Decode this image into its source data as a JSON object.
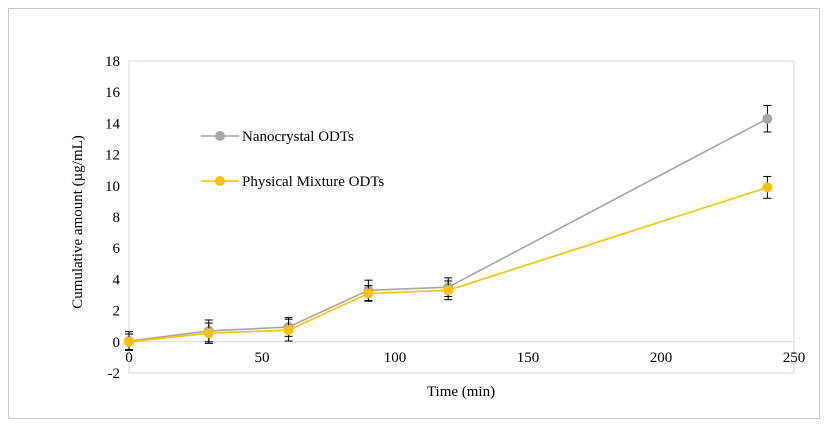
{
  "chart_data": {
    "type": "line",
    "xlabel": "Time (min)",
    "ylabel": "Cumulative amount (µg/mL)",
    "xlim": [
      0,
      250
    ],
    "ylim": [
      -2,
      18
    ],
    "xticks": [
      0,
      50,
      100,
      150,
      200,
      250
    ],
    "yticks": [
      -2,
      0,
      2,
      4,
      6,
      8,
      10,
      12,
      14,
      16,
      18
    ],
    "grid": false,
    "legend": "upper-left inside plot",
    "x": [
      0,
      30,
      60,
      90,
      120,
      240
    ],
    "series": [
      {
        "name": "Nanocrystal ODTs",
        "color": "#a6a6a6",
        "values": [
          0.05,
          0.7,
          0.95,
          3.3,
          3.5,
          14.3
        ],
        "errors": [
          0.6,
          0.7,
          0.6,
          0.65,
          0.6,
          0.85
        ]
      },
      {
        "name": "Physical Mixture ODTs",
        "color": "#ffc000",
        "values": [
          0.0,
          0.55,
          0.75,
          3.1,
          3.3,
          9.9
        ],
        "errors": [
          0.5,
          0.65,
          0.7,
          0.5,
          0.6,
          0.7
        ]
      }
    ]
  }
}
